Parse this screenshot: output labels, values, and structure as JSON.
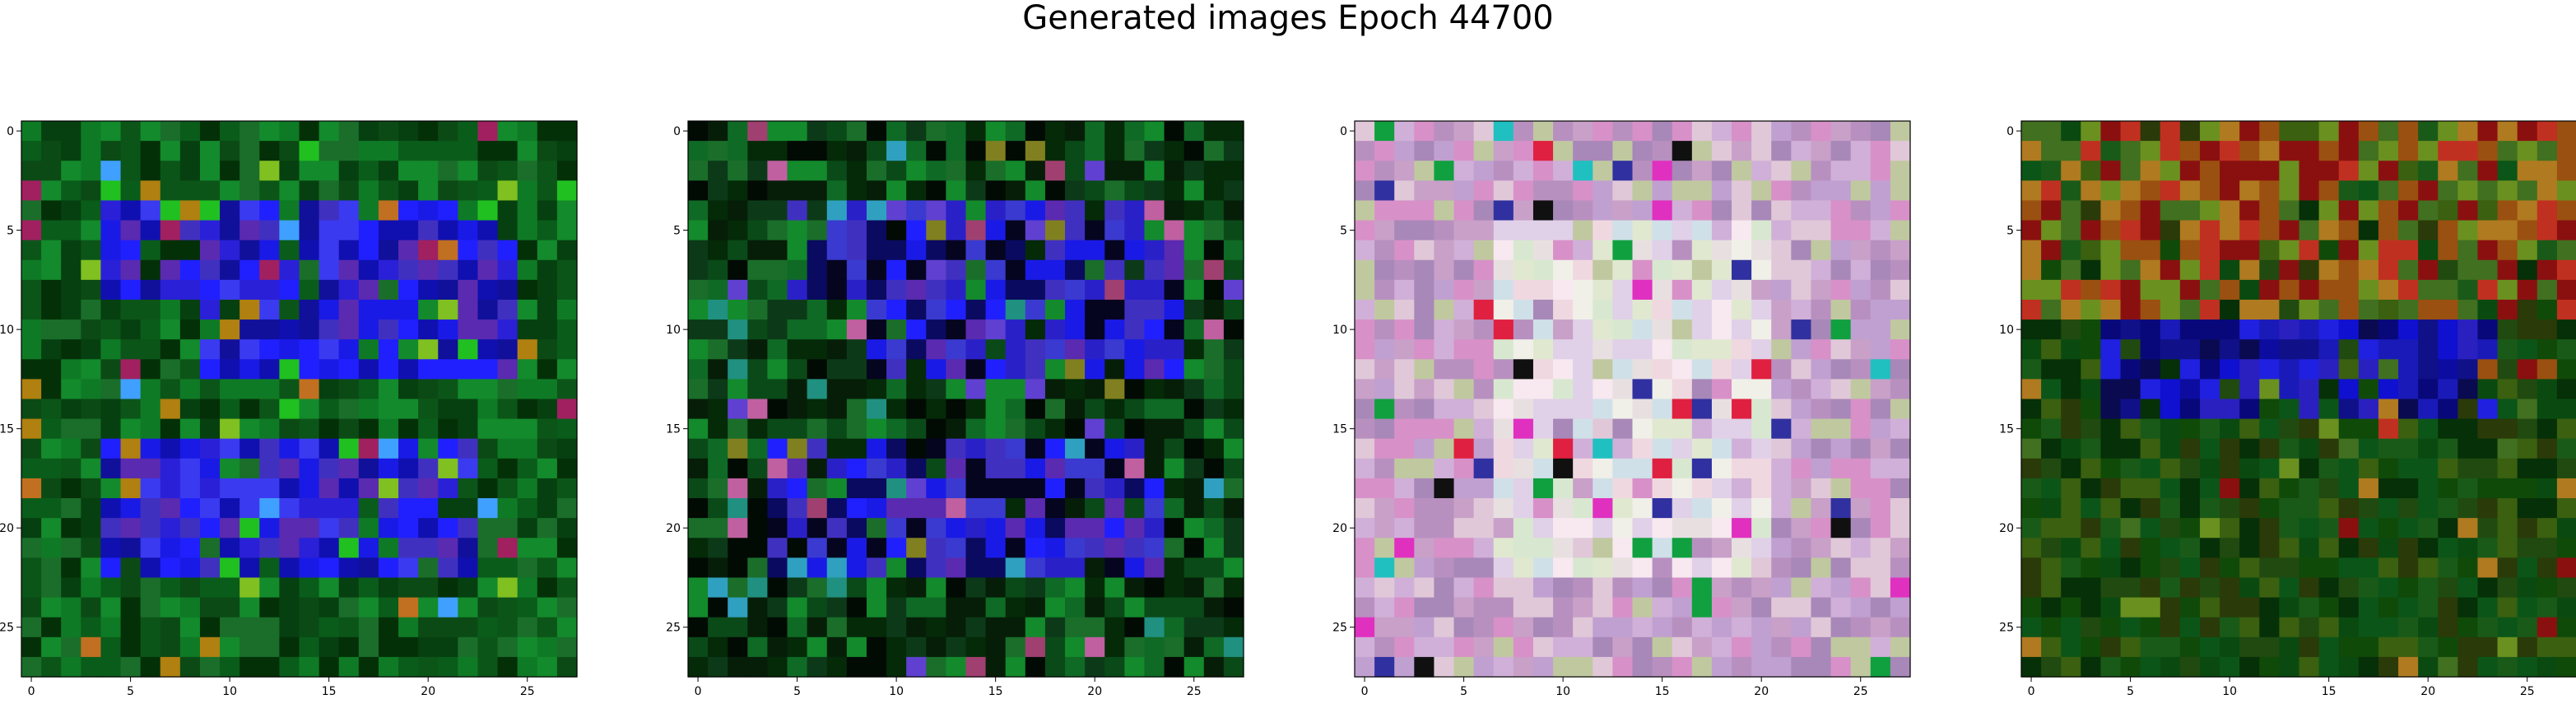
{
  "figure": {
    "title": "Generated images Epoch 44700"
  },
  "chart_data": [
    {
      "type": "heatmap",
      "subtitle": "",
      "grid_size": [
        28,
        28
      ],
      "x_ticks": [
        0,
        5,
        10,
        15,
        20,
        25
      ],
      "y_ticks": [
        0,
        5,
        10,
        15,
        20,
        25
      ],
      "xlim": [
        -0.5,
        27.5
      ],
      "ylim": [
        27.5,
        -0.5
      ],
      "grid": false,
      "palette": {
        "background": [
          "#0a5c1a",
          "#0f7a25",
          "#064010",
          "#138a2c",
          "#0b4a15",
          "#1a6e2a",
          "#0c5518",
          "#043008"
        ],
        "foreground": [
          "#1a1ae6",
          "#2a20d8",
          "#3a3af0",
          "#1010b0",
          "#4030c0",
          "#2020ff",
          "#5a2ab0",
          "#10109a"
        ],
        "accent": [
          "#20c020",
          "#c07020",
          "#b08010",
          "#40a0ff",
          "#80c020",
          "#a02060"
        ]
      },
      "rectangles": [
        [
          4,
          4,
          8,
          21
        ],
        [
          16,
          4,
          22,
          22
        ],
        [
          5,
          9,
          12,
          24
        ]
      ]
    },
    {
      "type": "heatmap",
      "subtitle": "",
      "grid_size": [
        28,
        28
      ],
      "x_ticks": [
        0,
        5,
        10,
        15,
        20,
        25
      ],
      "y_ticks": [
        0,
        5,
        10,
        15,
        20,
        25
      ],
      "xlim": [
        -0.5,
        27.5
      ],
      "ylim": [
        27.5,
        -0.5
      ],
      "grid": false,
      "palette": {
        "background": [
          "#0a4a18",
          "#0f6a25",
          "#042a08",
          "#138a2c",
          "#061e08",
          "#1a6e2a",
          "#020a04",
          "#0c3a18"
        ],
        "foreground": [
          "#1a1ae6",
          "#2a20c8",
          "#3a3ad0",
          "#0a0a60",
          "#4030c0",
          "#2020ff",
          "#5a2ab0",
          "#050520"
        ],
        "accent": [
          "#c060a0",
          "#209080",
          "#808020",
          "#30a0c0",
          "#6040d0",
          "#a04070"
        ]
      },
      "rectangles": [
        [
          4,
          5,
          8,
          22
        ],
        [
          16,
          4,
          22,
          23
        ],
        [
          5,
          9,
          12,
          24
        ]
      ]
    },
    {
      "type": "heatmap",
      "subtitle": "",
      "grid_size": [
        28,
        28
      ],
      "x_ticks": [
        0,
        5,
        10,
        15,
        20,
        25
      ],
      "y_ticks": [
        0,
        5,
        10,
        15,
        20,
        25
      ],
      "xlim": [
        -0.5,
        27.5
      ],
      "ylim": [
        27.5,
        -0.5
      ],
      "grid": false,
      "palette": {
        "background": [
          "#c8a0c8",
          "#d0b0d8",
          "#b890c0",
          "#e0c8d8",
          "#a888b8",
          "#c0c8a0",
          "#d890c8",
          "#c0a0d0"
        ],
        "foreground": [
          "#e8e0e0",
          "#f0d8e0",
          "#d8e8d0",
          "#f0f0e8",
          "#e0d0e8",
          "#d0e0e8",
          "#f8e8f0",
          "#e0e8d0"
        ],
        "accent": [
          "#101010",
          "#3030a0",
          "#20c0c0",
          "#e02040",
          "#10a040",
          "#e030c0"
        ]
      },
      "rectangles": [
        [
          5,
          7,
          22,
          20
        ]
      ]
    },
    {
      "type": "heatmap",
      "subtitle": "",
      "grid_size": [
        28,
        28
      ],
      "x_ticks": [
        0,
        5,
        10,
        15,
        20,
        25
      ],
      "y_ticks": [
        0,
        5,
        10,
        15,
        20,
        25
      ],
      "xlim": [
        -0.5,
        27.5
      ],
      "ylim": [
        27.5,
        -0.5
      ],
      "grid": false,
      "palette": {
        "background": [
          "#0a4a10",
          "#104a08",
          "#3a6010",
          "#204a10",
          "#063008",
          "#1a5a18",
          "#2a3a08",
          "#0c5518"
        ],
        "foreground": [
          "#1010d0",
          "#0c0ca0",
          "#2020e0",
          "#08087a",
          "#1a1ab8",
          "#0a0a50",
          "#2a20c0",
          "#101088"
        ],
        "accent": [
          "#9a5010",
          "#8a1010",
          "#b07a20",
          "#6a9020",
          "#c03020",
          "#407020"
        ]
      },
      "rectangles": [
        [
          7,
          4,
          14,
          23
        ]
      ],
      "top_band_rows": [
        0,
        9
      ]
    }
  ]
}
